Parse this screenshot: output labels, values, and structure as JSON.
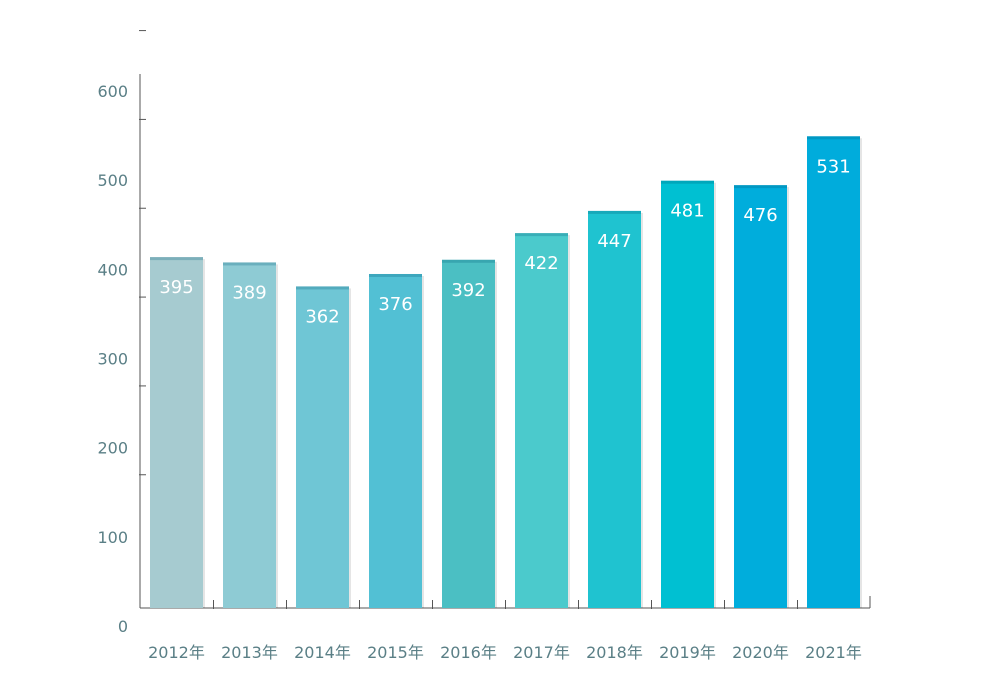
{
  "chart_data": {
    "type": "bar",
    "categories": [
      "2012年",
      "2013年",
      "2014年",
      "2015年",
      "2016年",
      "2017年",
      "2018年",
      "2019年",
      "2020年",
      "2021年"
    ],
    "values": [
      395,
      389,
      362,
      376,
      392,
      422,
      447,
      481,
      476,
      531
    ],
    "data_labels": [
      "395",
      "389",
      "362",
      "376",
      "392",
      "422",
      "447",
      "481",
      "476",
      "531"
    ],
    "bar_colors": [
      "#a6cbd0",
      "#8ecbd4",
      "#6fc6d5",
      "#52c0d4",
      "#4bbfc3",
      "#4bcacc",
      "#1fc3d0",
      "#00c0d2",
      "#00addc",
      "#00acdc"
    ],
    "y_ticks": [
      "0",
      "100",
      "200",
      "300",
      "400",
      "500",
      "600"
    ],
    "ylim": [
      0,
      600
    ],
    "grid": false,
    "legend": "none"
  }
}
